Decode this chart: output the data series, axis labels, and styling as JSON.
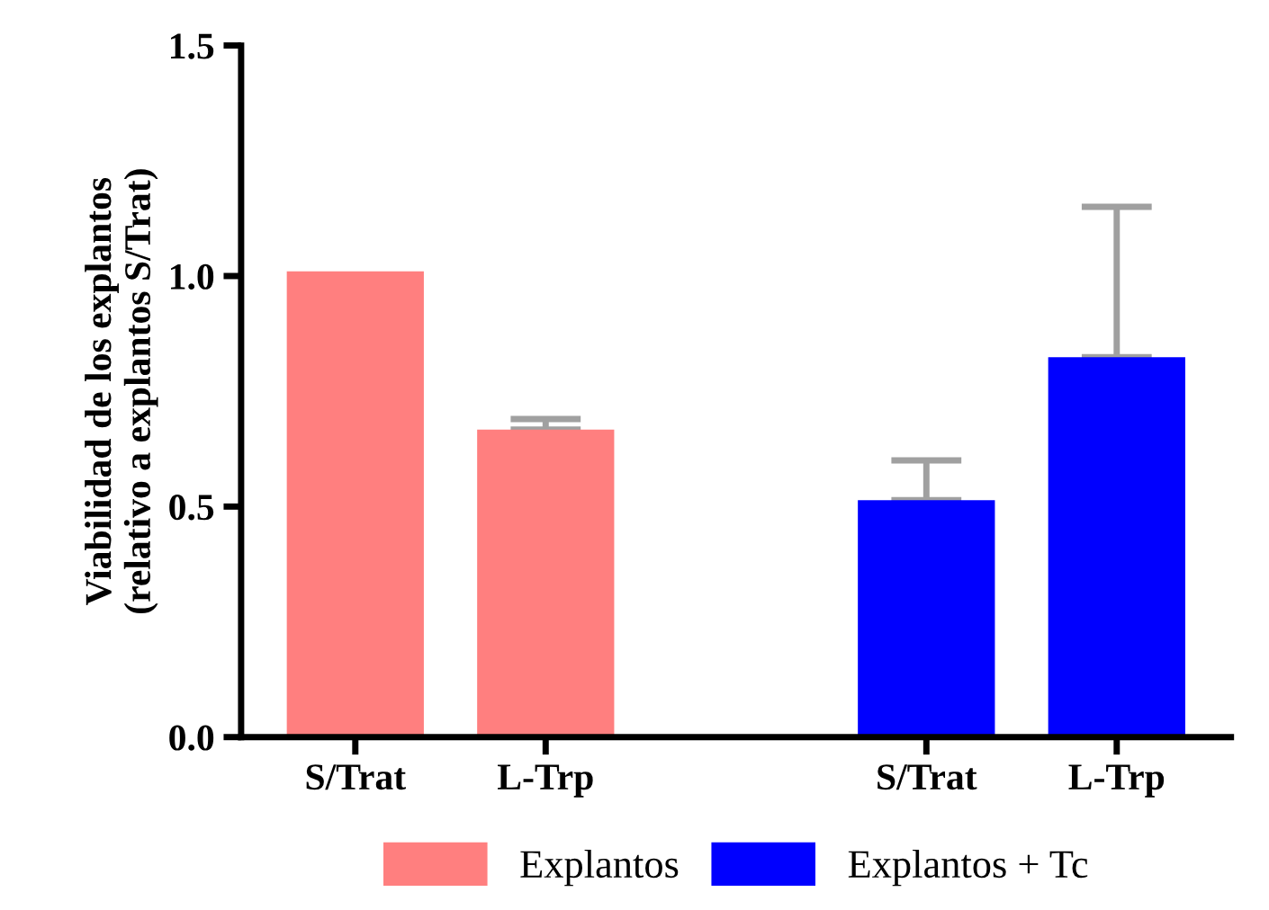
{
  "chart_data": {
    "type": "bar",
    "ylabel": "Viabilidad de los explantos\n(relativo a explantos S/Trat)",
    "categories": [
      "S/Trat",
      "L-Trp",
      null,
      "S/Trat",
      "L-Trp"
    ],
    "series": [
      {
        "name": "Explantos",
        "color": "#ff7f7f",
        "values": [
          1.01,
          0.667,
          null,
          null,
          null
        ],
        "errors": [
          null,
          [
            0.667,
            0.69
          ],
          null,
          null,
          null
        ]
      },
      {
        "name": "Explantos + Tc",
        "color": "#0000ff",
        "values": [
          null,
          null,
          null,
          0.514,
          0.824
        ],
        "errors": [
          null,
          null,
          null,
          [
            0.514,
            0.6
          ],
          [
            0.824,
            1.15
          ]
        ]
      }
    ],
    "ylim": [
      0,
      1.5
    ],
    "yticks": [
      {
        "value": 0,
        "label": "0.0"
      },
      {
        "value": 0.5,
        "label": "0.5"
      },
      {
        "value": 1.0,
        "label": "1.0"
      },
      {
        "value": 1.5,
        "label": "1.5"
      }
    ],
    "grid": false,
    "legend": "bottom"
  }
}
